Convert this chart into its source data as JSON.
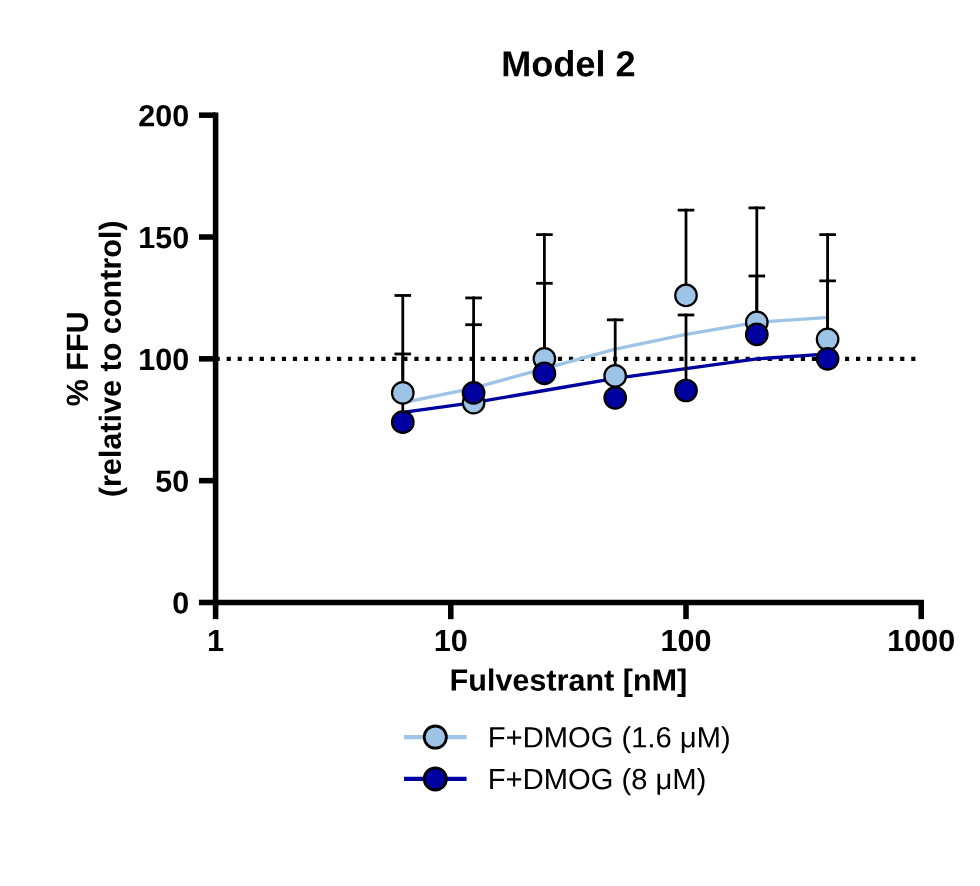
{
  "chart_data": {
    "type": "scatter",
    "title": "Model 2",
    "xlabel": "Fulvestrant [nM]",
    "ylabel": "% FFU\n(relative to control)",
    "log": "x",
    "xlim": [
      1,
      1000
    ],
    "xticks": [
      1,
      10,
      100,
      1000
    ],
    "ylim": [
      0,
      200
    ],
    "yticks": [
      0,
      50,
      100,
      150,
      200
    ],
    "grid": false,
    "legend": "bottom",
    "marker": "circle",
    "series": [
      {
        "name": "F+DMOG (1.6 μM)",
        "color": "#9dc3e6",
        "x": [
          6.25,
          12.5,
          25,
          50,
          100,
          200,
          400
        ],
        "values": [
          86,
          82,
          100,
          93,
          126,
          115,
          108
        ],
        "errors": [
          [
            86,
            126
          ],
          [
            82,
            125
          ],
          [
            100,
            151
          ],
          [
            93,
            116
          ],
          [
            126,
            161
          ],
          [
            115,
            162
          ],
          [
            108,
            151
          ]
        ]
      },
      {
        "name": "F+DMOG (8 μM)",
        "color": "#0000a0",
        "x": [
          6.25,
          12.5,
          25,
          50,
          100,
          200,
          400
        ],
        "values": [
          74,
          86,
          94,
          84,
          87,
          110,
          100
        ],
        "errors": [
          [
            74,
            102
          ],
          [
            86,
            114
          ],
          [
            94,
            131
          ],
          null,
          [
            87,
            118
          ],
          [
            110,
            134
          ],
          [
            100,
            132
          ]
        ]
      },
      {
        "type": "line",
        "marker": "none",
        "color": "#9dc3e6",
        "x": [
          6.25,
          12.5,
          25,
          50,
          100,
          200,
          400
        ],
        "values": [
          82,
          88,
          96,
          104,
          110,
          115,
          117
        ]
      },
      {
        "type": "line",
        "marker": "none",
        "color": "#0000a0",
        "x": [
          6.25,
          12.5,
          25,
          50,
          100,
          200,
          400
        ],
        "values": [
          78,
          82,
          87,
          92,
          96,
          100,
          102
        ]
      }
    ],
    "ref_lines": [
      {
        "axis": "y",
        "value": 100,
        "color": "#000000",
        "line_style": "dotted"
      }
    ]
  }
}
